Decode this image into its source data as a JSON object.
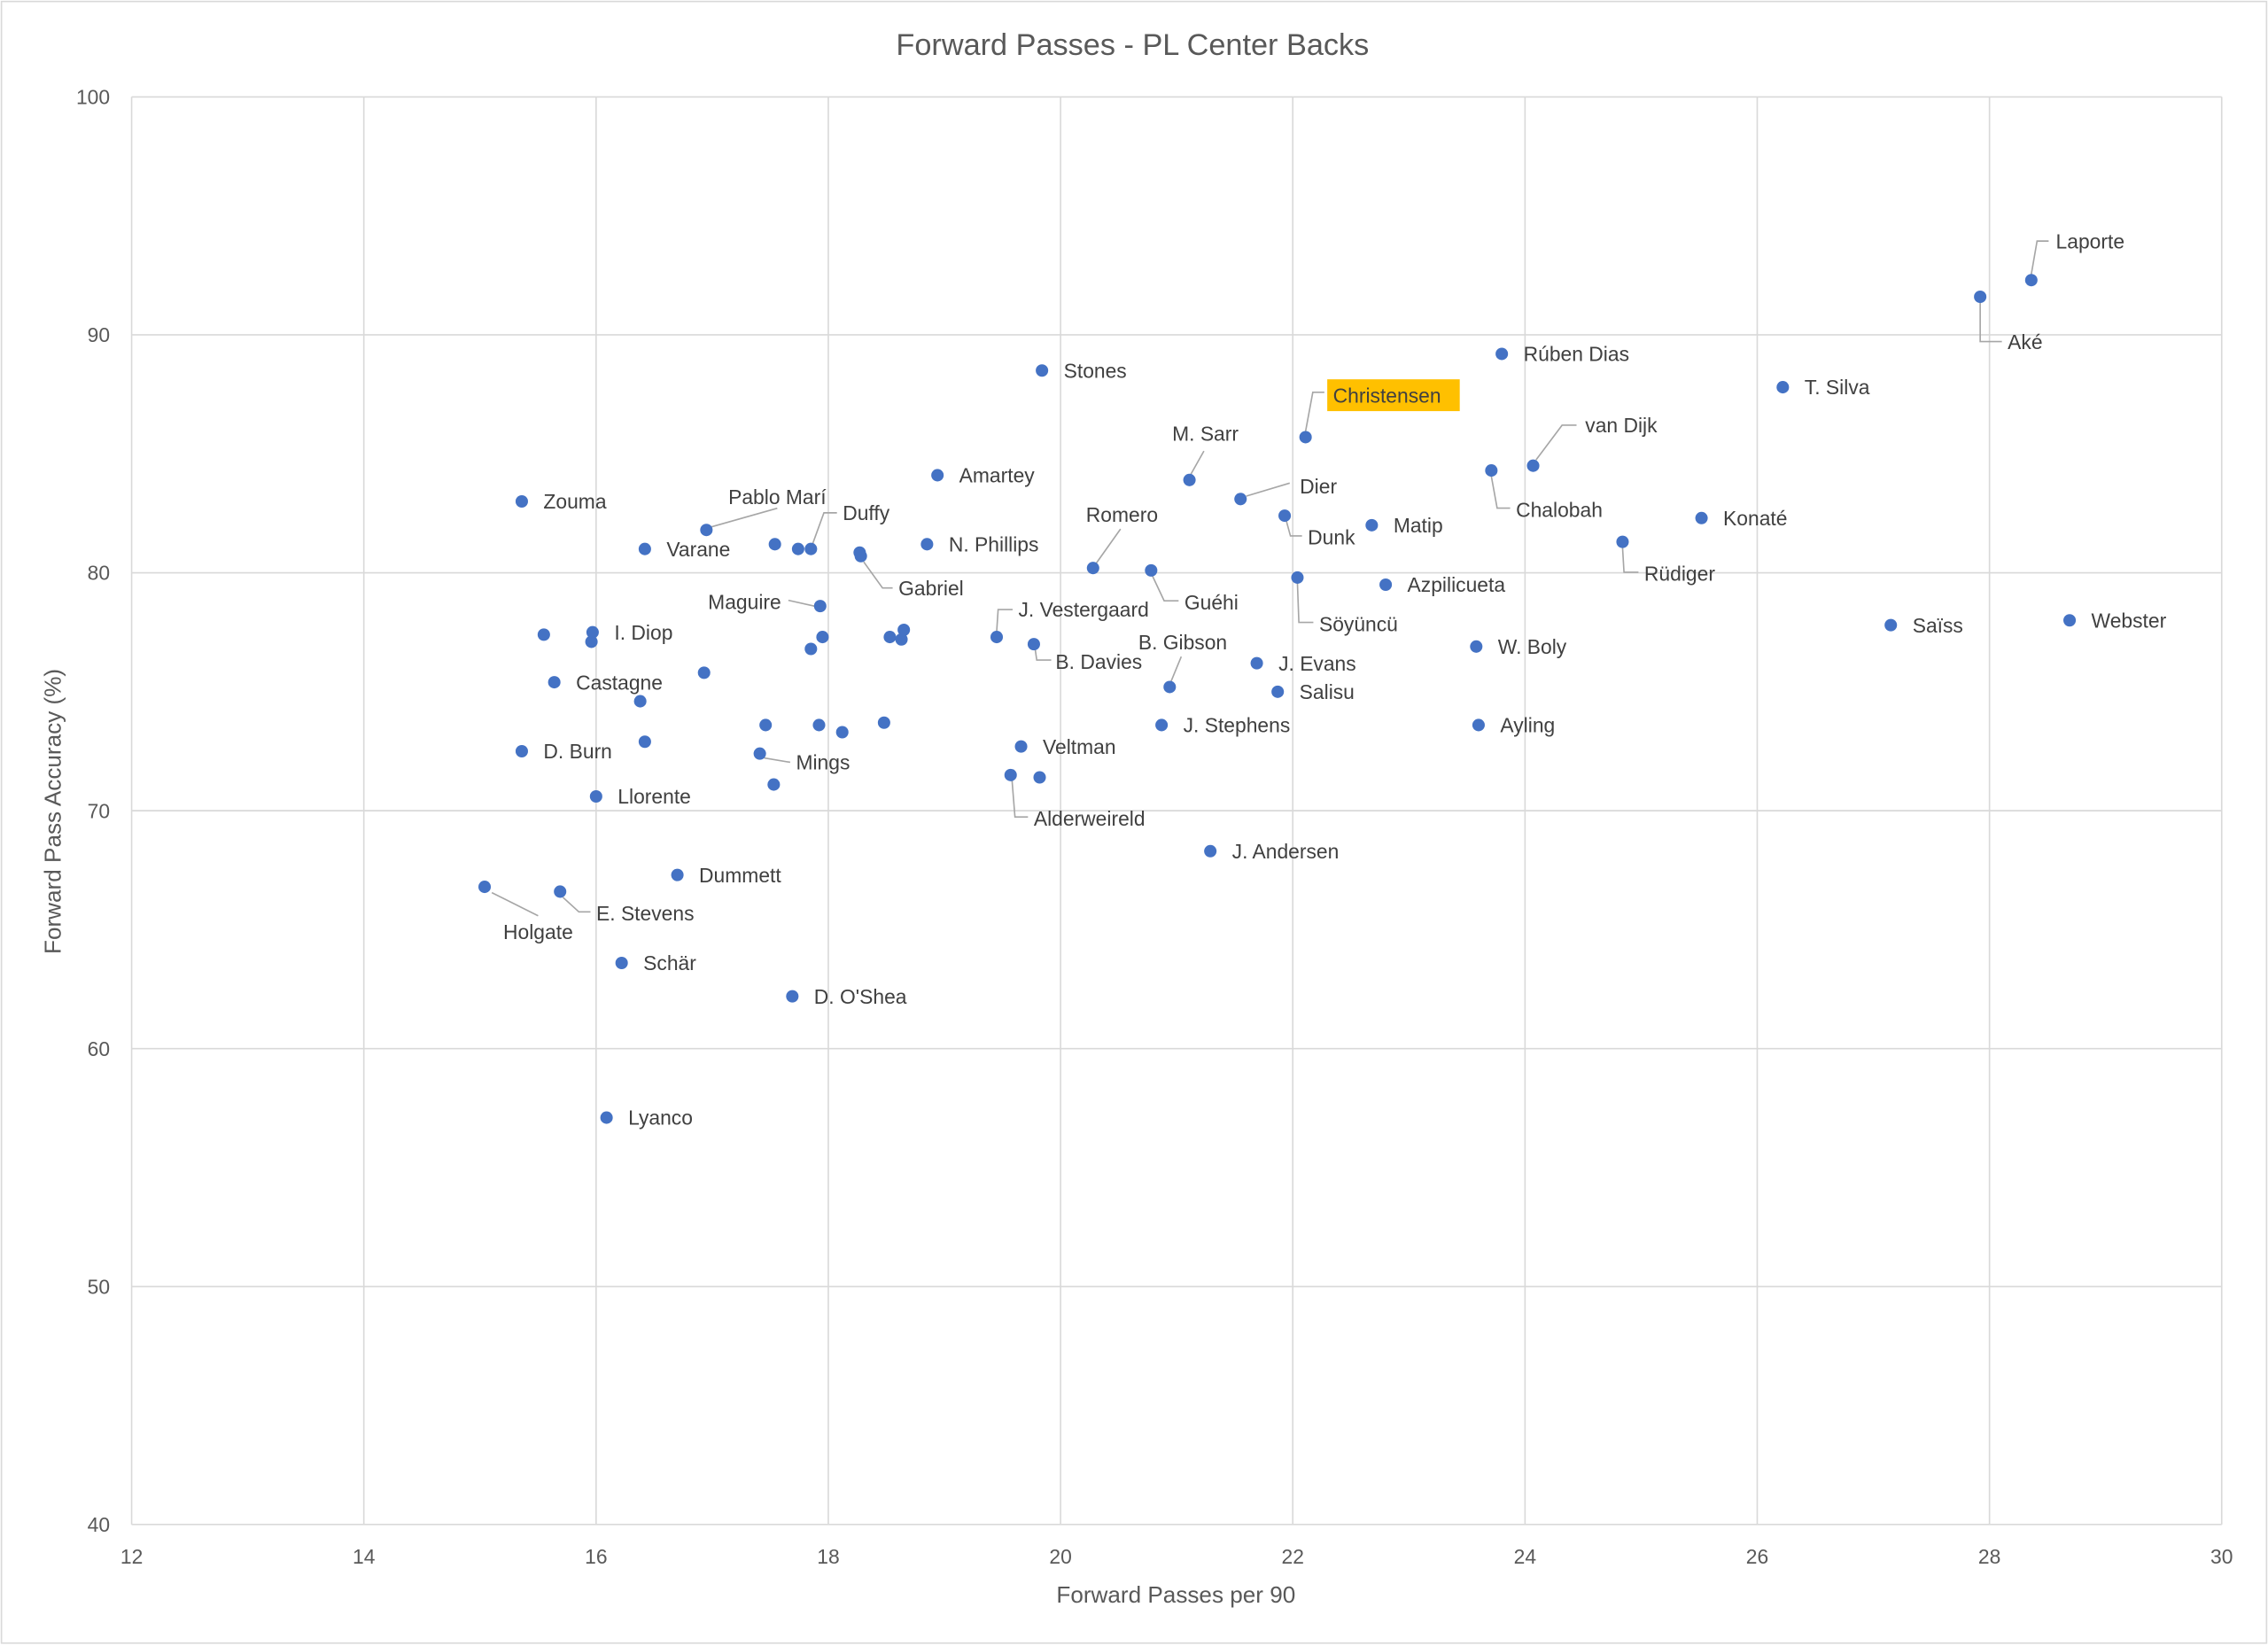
{
  "chart_data": {
    "type": "scatter",
    "title": "Forward Passes - PL Center Backs",
    "xlabel": "Forward Passes per 90",
    "ylabel": "Forward Pass Accuracy (%)",
    "xlim": [
      12,
      30
    ],
    "ylim": [
      40,
      100
    ],
    "xticks": [
      12,
      14,
      16,
      18,
      20,
      22,
      24,
      26,
      28,
      30
    ],
    "yticks": [
      40,
      50,
      60,
      70,
      80,
      90,
      100
    ],
    "grid": true,
    "highlight": "Christensen",
    "colors": {
      "point": "#4472C4",
      "highlight": "#FFC000",
      "grid": "#D9D9D9"
    },
    "points": [
      {
        "x": 28.36,
        "y": 92.3,
        "label": "Laporte"
      },
      {
        "x": 27.92,
        "y": 91.6,
        "label": "Aké"
      },
      {
        "x": 23.8,
        "y": 89.2,
        "label": "Rúben Dias"
      },
      {
        "x": 26.22,
        "y": 87.8,
        "label": "T. Silva"
      },
      {
        "x": 19.84,
        "y": 88.5,
        "label": "Stones"
      },
      {
        "x": 22.11,
        "y": 85.7,
        "label": "Christensen"
      },
      {
        "x": 24.07,
        "y": 84.5,
        "label": "van Dijk"
      },
      {
        "x": 23.71,
        "y": 84.3,
        "label": "Chalobah"
      },
      {
        "x": 21.11,
        "y": 83.9,
        "label": "M. Sarr"
      },
      {
        "x": 18.94,
        "y": 84.1,
        "label": "Amartey"
      },
      {
        "x": 21.55,
        "y": 83.1,
        "label": "Dier"
      },
      {
        "x": 15.36,
        "y": 83.0,
        "label": "Zouma"
      },
      {
        "x": 21.93,
        "y": 82.4,
        "label": "Dunk"
      },
      {
        "x": 22.68,
        "y": 82.0,
        "label": "Matip"
      },
      {
        "x": 25.52,
        "y": 82.3,
        "label": "Konaté"
      },
      {
        "x": 16.95,
        "y": 81.8,
        "label": "Pablo Marí"
      },
      {
        "x": 17.85,
        "y": 81.0,
        "label": "Duffy"
      },
      {
        "x": 17.74,
        "y": 81.0,
        "label": ""
      },
      {
        "x": 17.54,
        "y": 81.2,
        "label": ""
      },
      {
        "x": 16.42,
        "y": 81.0,
        "label": "Varane"
      },
      {
        "x": 18.85,
        "y": 81.2,
        "label": "N. Phillips"
      },
      {
        "x": 24.84,
        "y": 81.3,
        "label": "Rüdiger"
      },
      {
        "x": 18.28,
        "y": 80.7,
        "label": "Gabriel"
      },
      {
        "x": 18.27,
        "y": 80.85,
        "label": ""
      },
      {
        "x": 20.28,
        "y": 80.2,
        "label": "Romero"
      },
      {
        "x": 20.78,
        "y": 80.1,
        "label": "Guéhi"
      },
      {
        "x": 22.04,
        "y": 79.8,
        "label": "Söyüncü"
      },
      {
        "x": 22.8,
        "y": 79.5,
        "label": "Azpilicueta"
      },
      {
        "x": 17.93,
        "y": 78.6,
        "label": "Maguire"
      },
      {
        "x": 28.69,
        "y": 78.0,
        "label": "Webster"
      },
      {
        "x": 27.15,
        "y": 77.8,
        "label": "Saïss"
      },
      {
        "x": 15.97,
        "y": 77.5,
        "label": "I. Diop"
      },
      {
        "x": 15.96,
        "y": 77.1,
        "label": ""
      },
      {
        "x": 15.55,
        "y": 77.4,
        "label": ""
      },
      {
        "x": 19.45,
        "y": 77.3,
        "label": "J. Vestergaard"
      },
      {
        "x": 18.65,
        "y": 77.6,
        "label": ""
      },
      {
        "x": 18.53,
        "y": 77.3,
        "label": ""
      },
      {
        "x": 18.63,
        "y": 77.2,
        "label": ""
      },
      {
        "x": 17.95,
        "y": 77.3,
        "label": ""
      },
      {
        "x": 17.85,
        "y": 76.8,
        "label": ""
      },
      {
        "x": 19.77,
        "y": 77.0,
        "label": "B. Davies"
      },
      {
        "x": 23.58,
        "y": 76.9,
        "label": "W. Boly"
      },
      {
        "x": 21.69,
        "y": 76.2,
        "label": "J. Evans"
      },
      {
        "x": 15.64,
        "y": 75.4,
        "label": "Castagne"
      },
      {
        "x": 16.93,
        "y": 75.8,
        "label": ""
      },
      {
        "x": 20.94,
        "y": 75.2,
        "label": "B. Gibson"
      },
      {
        "x": 21.87,
        "y": 75.0,
        "label": "Salisu"
      },
      {
        "x": 16.38,
        "y": 74.6,
        "label": ""
      },
      {
        "x": 20.87,
        "y": 73.6,
        "label": "J. Stephens"
      },
      {
        "x": 23.6,
        "y": 73.6,
        "label": "Ayling"
      },
      {
        "x": 17.46,
        "y": 73.6,
        "label": ""
      },
      {
        "x": 17.92,
        "y": 73.6,
        "label": ""
      },
      {
        "x": 18.48,
        "y": 73.7,
        "label": ""
      },
      {
        "x": 18.12,
        "y": 73.3,
        "label": ""
      },
      {
        "x": 16.42,
        "y": 72.9,
        "label": ""
      },
      {
        "x": 15.36,
        "y": 72.5,
        "label": "D. Burn"
      },
      {
        "x": 19.66,
        "y": 72.7,
        "label": "Veltman"
      },
      {
        "x": 17.41,
        "y": 72.4,
        "label": "Mings"
      },
      {
        "x": 19.57,
        "y": 71.5,
        "label": "Alderweireld"
      },
      {
        "x": 19.82,
        "y": 71.4,
        "label": ""
      },
      {
        "x": 17.53,
        "y": 71.1,
        "label": ""
      },
      {
        "x": 16.0,
        "y": 70.6,
        "label": "Llorente"
      },
      {
        "x": 21.29,
        "y": 68.3,
        "label": "J. Andersen"
      },
      {
        "x": 16.7,
        "y": 67.3,
        "label": "Dummett"
      },
      {
        "x": 15.04,
        "y": 66.8,
        "label": "Holgate"
      },
      {
        "x": 15.69,
        "y": 66.6,
        "label": "E. Stevens"
      },
      {
        "x": 16.22,
        "y": 63.6,
        "label": "Schär"
      },
      {
        "x": 17.69,
        "y": 62.2,
        "label": "D. O'Shea"
      },
      {
        "x": 16.09,
        "y": 57.1,
        "label": "Lyanco"
      }
    ]
  }
}
